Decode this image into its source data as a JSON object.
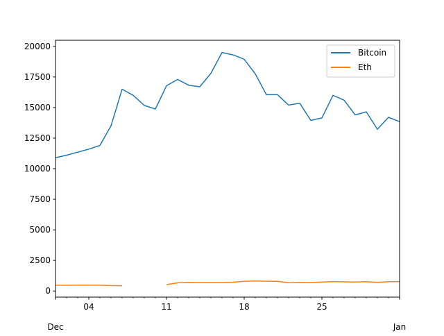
{
  "chart_data": {
    "type": "line",
    "title": "",
    "xlabel": "",
    "ylabel": "",
    "x_tick_labels": [
      "04",
      "11",
      "18",
      "25"
    ],
    "x_tick_days": [
      4,
      11,
      18,
      25
    ],
    "x_secondary_labels": {
      "start": "Dec",
      "end": "Jan"
    },
    "xlim": [
      "2017-12-01",
      "2018-01-01"
    ],
    "ylim": [
      -500,
      20500
    ],
    "y_ticks": [
      0,
      2500,
      5000,
      7500,
      10000,
      12500,
      15000,
      17500,
      20000
    ],
    "legend_position": "upper right",
    "grid": false,
    "x_days": [
      1,
      2,
      3,
      4,
      5,
      6,
      7,
      8,
      9,
      10,
      11,
      12,
      13,
      14,
      15,
      16,
      17,
      18,
      19,
      20,
      21,
      22,
      23,
      24,
      25,
      26,
      27,
      28,
      29,
      30,
      31,
      32
    ],
    "series": [
      {
        "name": "Bitcoin",
        "color": "#1f77b4",
        "values": [
          10900,
          11100,
          11350,
          11600,
          11900,
          13500,
          16500,
          16000,
          15170,
          14880,
          16780,
          17300,
          16820,
          16700,
          17800,
          19500,
          19300,
          18950,
          17750,
          16050,
          16050,
          15200,
          15350,
          13950,
          14150,
          16000,
          15600,
          14400,
          14650,
          13230,
          14200,
          13850
        ]
      },
      {
        "name": "Eth",
        "color": "#ff7f0e",
        "values": [
          470,
          470,
          475,
          480,
          470,
          440,
          430,
          null,
          null,
          null,
          520,
          670,
          710,
          700,
          690,
          695,
          720,
          790,
          820,
          800,
          790,
          670,
          710,
          690,
          740,
          770,
          750,
          730,
          760,
          710,
          760,
          770
        ]
      }
    ]
  }
}
